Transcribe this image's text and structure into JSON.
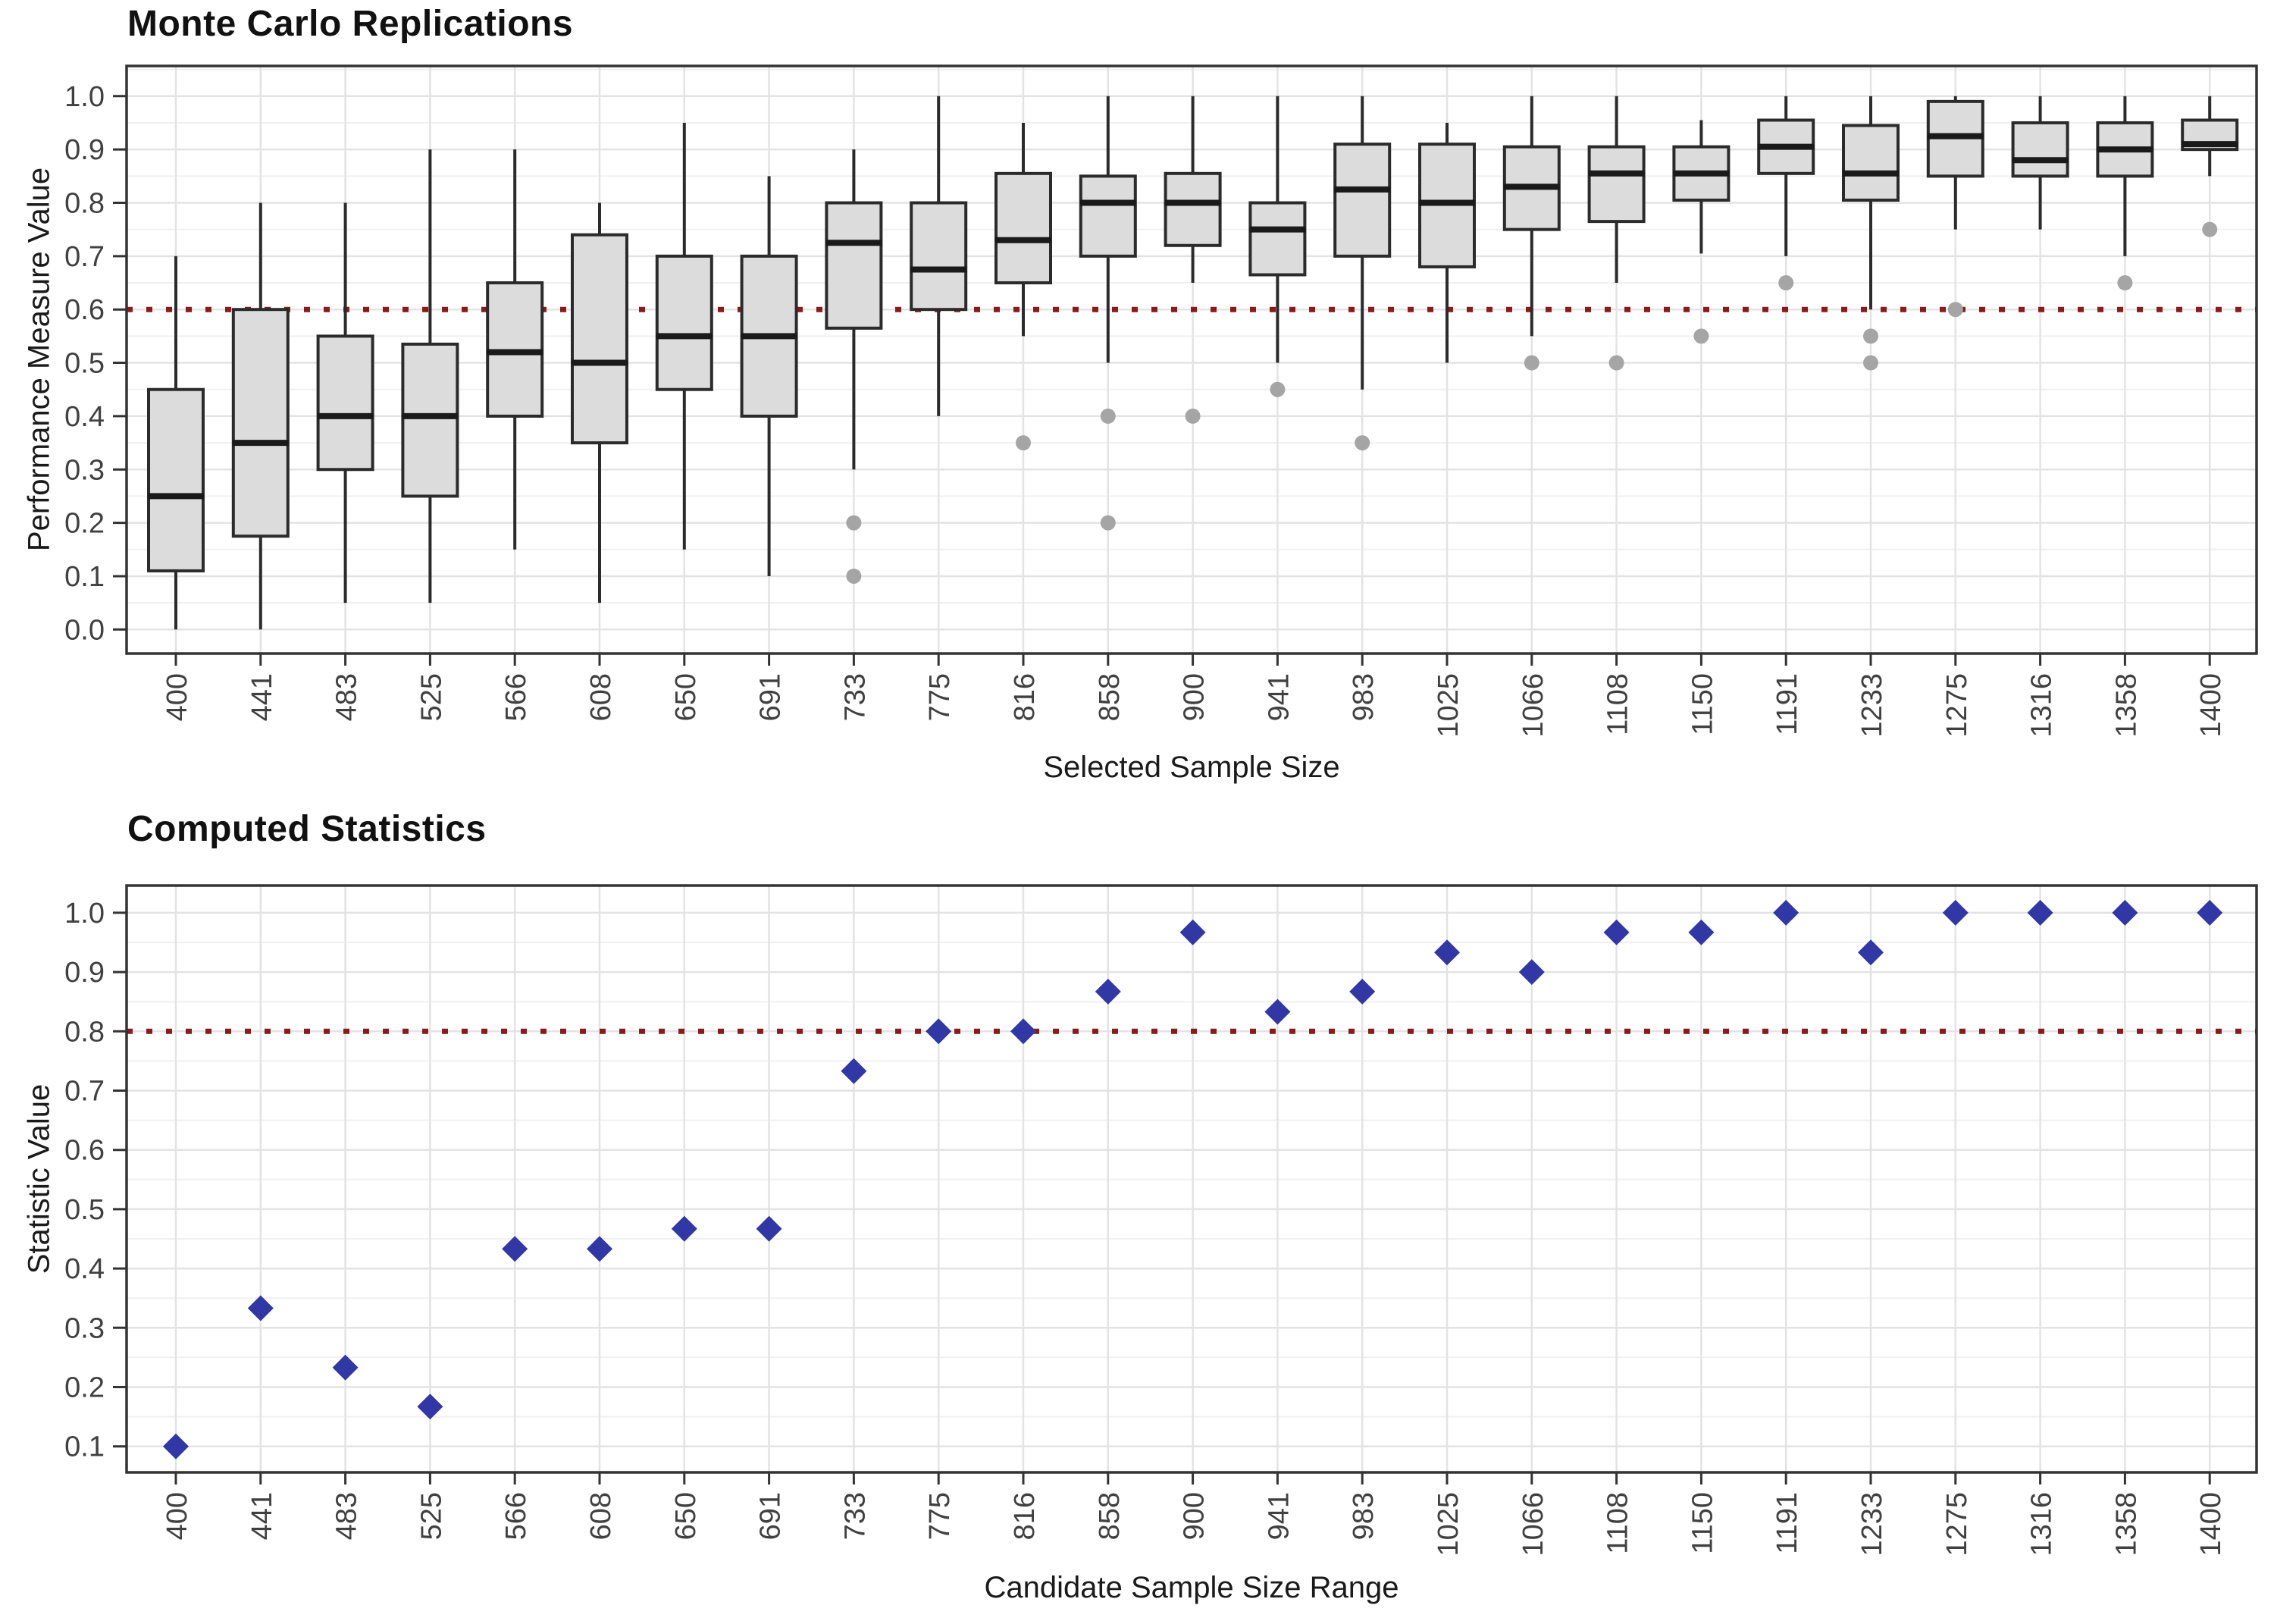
{
  "colors": {
    "title": "#111111",
    "axis_title": "#1a1a1a",
    "tick_label": "#404040",
    "panel_border": "#333333",
    "tick_mark": "#333333",
    "grid_major": "#e3e3e3",
    "grid_minor": "#f0f0f0",
    "box_fill": "#dcdcdc",
    "box_stroke": "#2b2b2b",
    "median_stroke": "#1a1a1a",
    "outlier_fill": "#a5a5a5",
    "diamond_fill": "#3137a4",
    "threshold_line": "#8b1a1a"
  },
  "chart_data": [
    {
      "type": "boxplot",
      "title": "Monte Carlo Replications",
      "xlabel": "Selected Sample Size",
      "ylabel": "Performance Measure Value",
      "legend_position": "none",
      "grid": "on",
      "ylim": [
        -0.045,
        1.057
      ],
      "yticks": [
        "0.0",
        "0.1",
        "0.2",
        "0.3",
        "0.4",
        "0.5",
        "0.6",
        "0.7",
        "0.8",
        "0.9",
        "1.0"
      ],
      "threshold": {
        "value": 0.6
      },
      "categories": [
        "400",
        "441",
        "483",
        "525",
        "566",
        "608",
        "650",
        "691",
        "733",
        "775",
        "816",
        "858",
        "900",
        "941",
        "983",
        "1025",
        "1066",
        "1108",
        "1150",
        "1191",
        "1233",
        "1275",
        "1316",
        "1358",
        "1400"
      ],
      "boxes": [
        {
          "x": "400",
          "min": 0.0,
          "q1": 0.11,
          "median": 0.25,
          "q3": 0.45,
          "max": 0.7,
          "outliers": []
        },
        {
          "x": "441",
          "min": 0.0,
          "q1": 0.175,
          "median": 0.35,
          "q3": 0.6,
          "max": 0.8,
          "outliers": []
        },
        {
          "x": "483",
          "min": 0.05,
          "q1": 0.3,
          "median": 0.4,
          "q3": 0.55,
          "max": 0.8,
          "outliers": []
        },
        {
          "x": "525",
          "min": 0.05,
          "q1": 0.25,
          "median": 0.4,
          "q3": 0.535,
          "max": 0.9,
          "outliers": []
        },
        {
          "x": "566",
          "min": 0.15,
          "q1": 0.4,
          "median": 0.52,
          "q3": 0.65,
          "max": 0.9,
          "outliers": []
        },
        {
          "x": "608",
          "min": 0.05,
          "q1": 0.35,
          "median": 0.5,
          "q3": 0.74,
          "max": 0.8,
          "outliers": []
        },
        {
          "x": "650",
          "min": 0.15,
          "q1": 0.45,
          "median": 0.55,
          "q3": 0.7,
          "max": 0.95,
          "outliers": []
        },
        {
          "x": "691",
          "min": 0.1,
          "q1": 0.4,
          "median": 0.55,
          "q3": 0.7,
          "max": 0.85,
          "outliers": []
        },
        {
          "x": "733",
          "min": 0.3,
          "q1": 0.565,
          "median": 0.725,
          "q3": 0.8,
          "max": 0.9,
          "outliers": [
            0.2,
            0.1
          ]
        },
        {
          "x": "775",
          "min": 0.4,
          "q1": 0.6,
          "median": 0.675,
          "q3": 0.8,
          "max": 1.0,
          "outliers": []
        },
        {
          "x": "816",
          "min": 0.55,
          "q1": 0.65,
          "median": 0.73,
          "q3": 0.855,
          "max": 0.95,
          "outliers": [
            0.35
          ]
        },
        {
          "x": "858",
          "min": 0.5,
          "q1": 0.7,
          "median": 0.8,
          "q3": 0.85,
          "max": 1.0,
          "outliers": [
            0.4,
            0.2
          ]
        },
        {
          "x": "900",
          "min": 0.65,
          "q1": 0.72,
          "median": 0.8,
          "q3": 0.855,
          "max": 1.0,
          "outliers": [
            0.4
          ]
        },
        {
          "x": "941",
          "min": 0.5,
          "q1": 0.665,
          "median": 0.75,
          "q3": 0.8,
          "max": 1.0,
          "outliers": [
            0.45
          ]
        },
        {
          "x": "983",
          "min": 0.45,
          "q1": 0.7,
          "median": 0.825,
          "q3": 0.91,
          "max": 1.0,
          "outliers": [
            0.35
          ]
        },
        {
          "x": "1025",
          "min": 0.5,
          "q1": 0.68,
          "median": 0.8,
          "q3": 0.91,
          "max": 0.95,
          "outliers": []
        },
        {
          "x": "1066",
          "min": 0.55,
          "q1": 0.75,
          "median": 0.83,
          "q3": 0.905,
          "max": 1.0,
          "outliers": [
            0.5
          ]
        },
        {
          "x": "1108",
          "min": 0.65,
          "q1": 0.765,
          "median": 0.855,
          "q3": 0.905,
          "max": 1.0,
          "outliers": [
            0.5
          ]
        },
        {
          "x": "1150",
          "min": 0.705,
          "q1": 0.805,
          "median": 0.855,
          "q3": 0.905,
          "max": 0.955,
          "outliers": [
            0.55
          ]
        },
        {
          "x": "1191",
          "min": 0.7,
          "q1": 0.855,
          "median": 0.905,
          "q3": 0.955,
          "max": 1.0,
          "outliers": [
            0.65
          ]
        },
        {
          "x": "1233",
          "min": 0.6,
          "q1": 0.805,
          "median": 0.855,
          "q3": 0.945,
          "max": 1.0,
          "outliers": [
            0.55,
            0.5
          ]
        },
        {
          "x": "1275",
          "min": 0.75,
          "q1": 0.85,
          "median": 0.925,
          "q3": 0.99,
          "max": 1.0,
          "outliers": [
            0.6
          ]
        },
        {
          "x": "1316",
          "min": 0.75,
          "q1": 0.85,
          "median": 0.88,
          "q3": 0.95,
          "max": 1.0,
          "outliers": []
        },
        {
          "x": "1358",
          "min": 0.7,
          "q1": 0.85,
          "median": 0.9,
          "q3": 0.95,
          "max": 1.0,
          "outliers": [
            0.65
          ]
        },
        {
          "x": "1400",
          "min": 0.85,
          "q1": 0.9,
          "median": 0.91,
          "q3": 0.955,
          "max": 1.0,
          "outliers": [
            0.75
          ]
        }
      ]
    },
    {
      "type": "scatter",
      "title": "Computed Statistics",
      "xlabel": "Candidate Sample Size Range",
      "ylabel": "Statistic Value",
      "legend_position": "none",
      "grid": "on",
      "marker": "diamond",
      "ylim": [
        0.056,
        1.046
      ],
      "yticks": [
        "0.1",
        "0.2",
        "0.3",
        "0.4",
        "0.5",
        "0.6",
        "0.7",
        "0.8",
        "0.9",
        "1.0"
      ],
      "threshold": {
        "value": 0.8
      },
      "categories": [
        "400",
        "441",
        "483",
        "525",
        "566",
        "608",
        "650",
        "691",
        "733",
        "775",
        "816",
        "858",
        "900",
        "941",
        "983",
        "1025",
        "1066",
        "1108",
        "1150",
        "1191",
        "1233",
        "1275",
        "1316",
        "1358",
        "1400"
      ],
      "values": [
        0.1,
        0.333,
        0.233,
        0.167,
        0.433,
        0.433,
        0.467,
        0.467,
        0.733,
        0.8,
        0.8,
        0.867,
        0.967,
        0.833,
        0.867,
        0.933,
        0.9,
        0.967,
        0.967,
        1.0,
        0.933,
        1.0,
        1.0,
        1.0,
        1.0
      ]
    }
  ]
}
